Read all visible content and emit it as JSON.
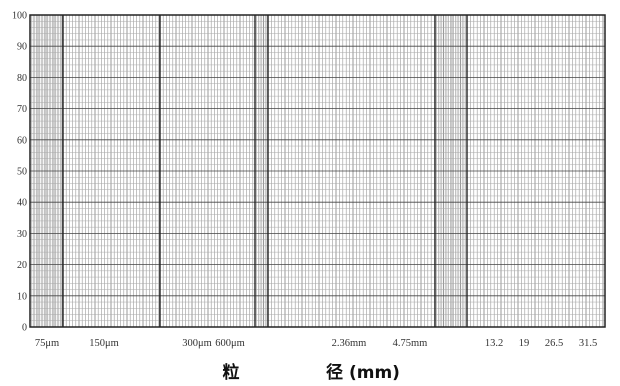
{
  "chart_data": {
    "type": "grading_chart",
    "title": "",
    "xlabel_part1": "粒",
    "xlabel_part2": "径 (mm)",
    "ylabel": "",
    "ylim": [
      0,
      100
    ],
    "y_ticks": [
      "0",
      "10",
      "20",
      "30",
      "40",
      "50",
      "60",
      "70",
      "80",
      "90",
      "100"
    ],
    "x_ticks": [
      "75μm",
      "150μm",
      "300μm",
      "600μm",
      "2.36mm",
      "4.75mm",
      "13.2",
      "19",
      "26.5",
      "31.5"
    ],
    "grid": true,
    "series": []
  }
}
